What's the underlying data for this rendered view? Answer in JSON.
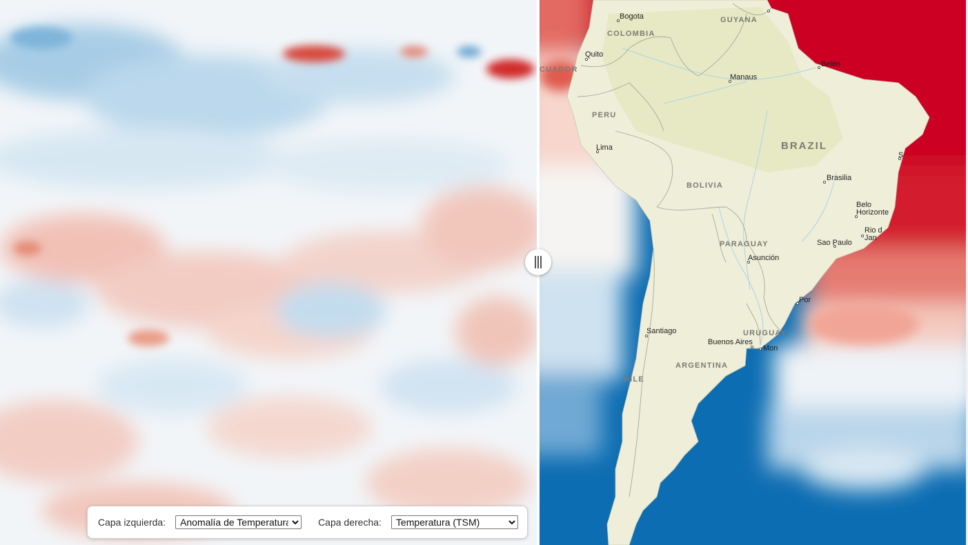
{
  "controls": {
    "left_label": "Capa izquierda:",
    "left_selected": "Anomalía de Temperatura",
    "right_label": "Capa derecha:",
    "right_selected": "Temperatura (TSM)"
  },
  "colors": {
    "warm": "#d6212e",
    "cool": "#0f6fb3",
    "land": "#efeed8",
    "land_tint": "#e4e8c2",
    "border": "#a8a89c",
    "anomaly_base": "#f3f6f9"
  },
  "map_labels": {
    "countries": {
      "colombia": "COLOMBIA",
      "ecuador": "CUADOR",
      "peru": "PERU",
      "guyana": "GUYANA",
      "brazil": "BRAZIL",
      "bolivia": "BOLIVIA",
      "paraguay": "PARAGUAY",
      "uruguay": "URUGUAY",
      "argentina": "ARGENTINA",
      "chile": "HILE"
    },
    "cities": {
      "bogota": "Bogota",
      "quito": "Quito",
      "manaus": "Manaus",
      "belem": "Belén",
      "lima": "Lima",
      "brasilia": "Brasilia",
      "belo_1": "Belo",
      "belo_2": "Horizonte",
      "rio_1": "Rio d",
      "rio_2": "Jan",
      "salvador": "S",
      "sao_paulo": "Sao Paulo",
      "asuncion": "Asunción",
      "porto": "Por",
      "santiago": "Santiago",
      "buenos_aires": "Buenos Aires",
      "montevideo": "Mon"
    }
  }
}
